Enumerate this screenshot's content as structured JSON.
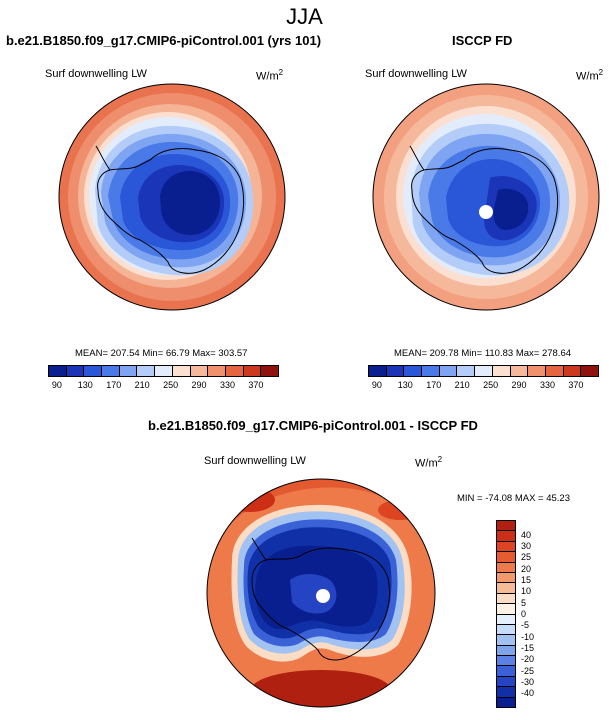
{
  "season": "JJA",
  "panel1": {
    "title": "b.e21.B1850.f09_g17.CMIP6-piControl.001 (yrs 101)",
    "variable": "Surf downwelling LW",
    "units_base": "W/m",
    "units_exp": "2",
    "stats": "MEAN= 207.54  Min=  66.79  Max= 303.57"
  },
  "panel2": {
    "title": "ISCCP FD",
    "variable": "Surf downwelling LW",
    "units_base": "W/m",
    "units_exp": "2",
    "stats": "MEAN= 209.78  Min= 110.83  Max= 278.64"
  },
  "panel3": {
    "title": "b.e21.B1850.f09_g17.CMIP6-piControl.001 - ISCCP FD",
    "variable": "Surf downwelling LW",
    "units_base": "W/m",
    "units_exp": "2",
    "stats": "MIN = -74.08 MAX =  45.23"
  },
  "abs_colorbar": {
    "colors": [
      "#0a1f8f",
      "#1a35b8",
      "#2a56d8",
      "#4a7ae8",
      "#7fa5f2",
      "#b4cdf8",
      "#e2ecfb",
      "#fbe0d2",
      "#f6b89a",
      "#f0906c",
      "#e4653f",
      "#cc3a1e",
      "#8f120c"
    ],
    "ticks": [
      "90",
      "130",
      "170",
      "210",
      "250",
      "290",
      "330",
      "370"
    ]
  },
  "diff_colorbar": {
    "colors": [
      "#b02010",
      "#cc2e16",
      "#dc4422",
      "#e65c30",
      "#ee7a4a",
      "#f29a6c",
      "#f6bc96",
      "#fbdcc4",
      "#fdf2e6",
      "#e6f0fc",
      "#c6dcf8",
      "#a2c2f2",
      "#7ea4ec",
      "#5a82e2",
      "#3a62d6",
      "#2444c4",
      "#1030a8",
      "#0a1f8f"
    ],
    "ticks": [
      "40",
      "30",
      "25",
      "20",
      "15",
      "10",
      "5",
      "0",
      "-5",
      "-10",
      "-15",
      "-20",
      "-25",
      "-30",
      "-40"
    ]
  }
}
